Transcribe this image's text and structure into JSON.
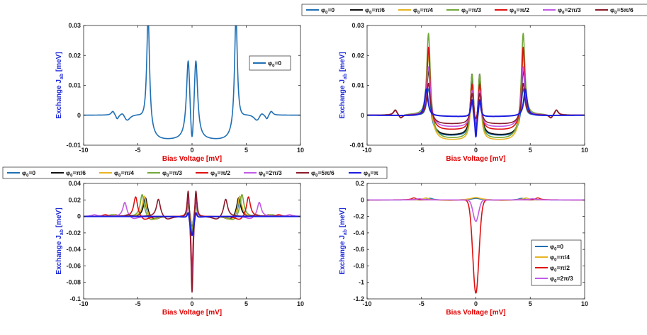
{
  "colors": {
    "phi0": "#1f6fb4",
    "pi6": "#111111",
    "pi4": "#e8b422",
    "pi3": "#72a83a",
    "pi2": "#e01010",
    "two_pi3": "#c45ae6",
    "five_pi6": "#8b1a2a",
    "pi": "#1c1ce0"
  },
  "legend_labels": {
    "phi0": "=0",
    "pi6": "=π/6",
    "pi4": "=π/4",
    "pi3": "=π/3",
    "pi2": "=π/2",
    "two_pi3": "=2π/3",
    "five_pi6": "=5π/6",
    "pi": "=π"
  },
  "legend_symbol": "φ",
  "legend_subscript": "0",
  "chart_data": [
    {
      "id": "tl",
      "type": "line",
      "xlabel": "Bias Voltage [mV]",
      "ylabel_main": "Exchange J",
      "ylabel_sub": "ab",
      "ylabel_unit": " [meV]",
      "xlim": [
        -10,
        10
      ],
      "ylim": [
        -0.01,
        0.03
      ],
      "xticks": [
        "-10",
        "-5",
        "0",
        "5",
        "10"
      ],
      "yticks": [
        "-0.01",
        "0",
        "0.01",
        "0.02",
        "0.03"
      ],
      "legend": "inside-right",
      "series": [
        {
          "name": "phi0"
        }
      ]
    },
    {
      "id": "tr",
      "type": "line",
      "xlabel": "Bias Voltage [mV]",
      "ylabel_main": "Exchange J",
      "ylabel_sub": "ab",
      "ylabel_unit": " [meV]",
      "xlim": [
        -10,
        10
      ],
      "ylim": [
        -0.01,
        0.03
      ],
      "xticks": [
        "-10",
        "-5",
        "0",
        "5",
        "10"
      ],
      "yticks": [
        "-0.01",
        "0",
        "0.01",
        "0.02",
        "0.03"
      ],
      "legend": "top-outside",
      "series": [
        {
          "name": "phi0"
        },
        {
          "name": "pi6"
        },
        {
          "name": "pi4"
        },
        {
          "name": "pi3"
        },
        {
          "name": "pi2"
        },
        {
          "name": "two_pi3"
        },
        {
          "name": "five_pi6"
        },
        {
          "name": "pi"
        }
      ]
    },
    {
      "id": "bl",
      "type": "line",
      "xlabel": "Bias Voltage [mV]",
      "ylabel_main": "Exchange J",
      "ylabel_sub": "ab",
      "ylabel_unit": " [meV]",
      "xlim": [
        -10,
        10
      ],
      "ylim": [
        -0.1,
        0.04
      ],
      "xticks": [
        "-10",
        "-5",
        "0",
        "5",
        "10"
      ],
      "yticks": [
        "-0.1",
        "-0.08",
        "-0.06",
        "-0.04",
        "-0.02",
        "0",
        "0.02",
        "0.04"
      ],
      "legend": "top-outside",
      "series": [
        {
          "name": "phi0"
        },
        {
          "name": "pi6"
        },
        {
          "name": "pi4"
        },
        {
          "name": "pi3"
        },
        {
          "name": "pi2"
        },
        {
          "name": "two_pi3"
        },
        {
          "name": "five_pi6"
        },
        {
          "name": "pi"
        }
      ]
    },
    {
      "id": "br",
      "type": "line",
      "xlabel": "Bias Voltage [mV]",
      "ylabel_main": "Exchange J",
      "ylabel_sub": "ab",
      "ylabel_unit": " [meV]",
      "xlim": [
        -10,
        10
      ],
      "ylim": [
        -1.2,
        0.2
      ],
      "xticks": [
        "-10",
        "-5",
        "0",
        "5",
        "10"
      ],
      "yticks": [
        "-1.2",
        "-1",
        "-0.8",
        "-0.6",
        "-0.4",
        "-0.2",
        "0",
        "0.2"
      ],
      "legend": "bottom-right",
      "series": [
        {
          "name": "phi0"
        },
        {
          "name": "pi4"
        },
        {
          "name": "pi2"
        },
        {
          "name": "two_pi3"
        }
      ]
    }
  ]
}
